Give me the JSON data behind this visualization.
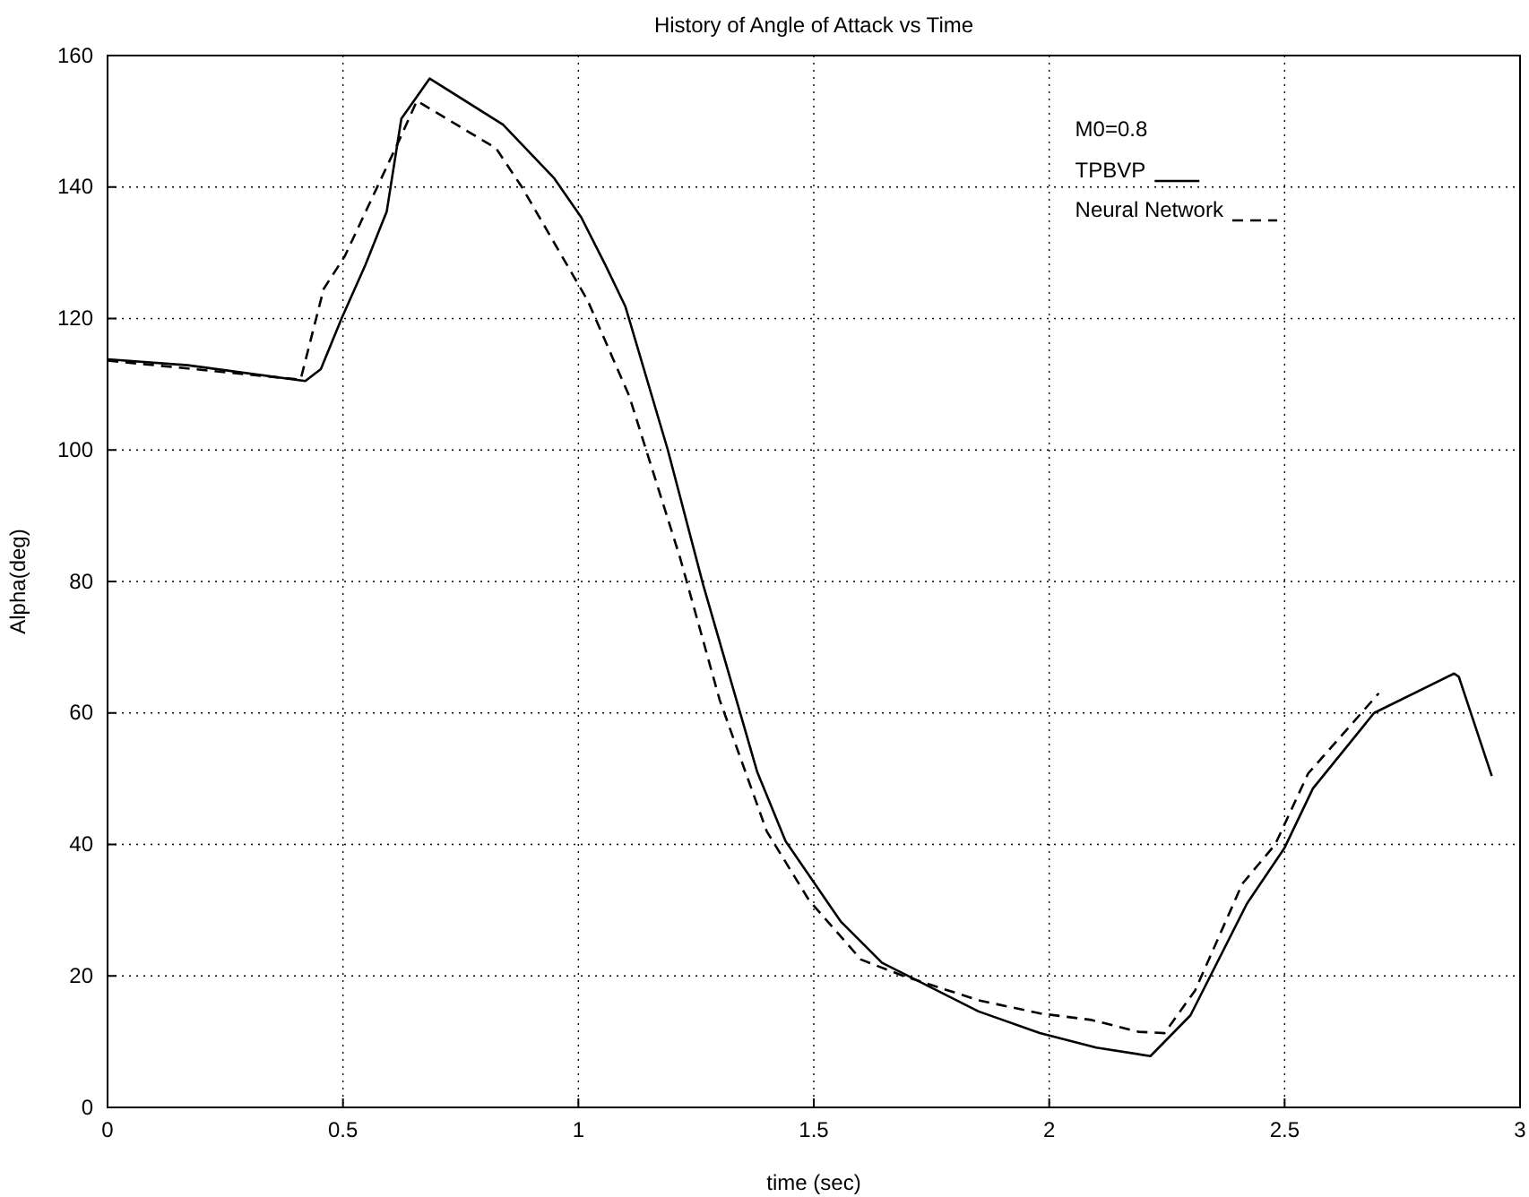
{
  "chart_data": {
    "type": "line",
    "title": "History of Angle of Attack vs Time",
    "xlabel": "time (sec)",
    "ylabel": "Alpha(deg)",
    "legend_title": "M0=0.8",
    "xlim": [
      0,
      3
    ],
    "ylim": [
      0,
      160
    ],
    "xticks": [
      0,
      0.5,
      1,
      1.5,
      2,
      2.5,
      3
    ],
    "yticks": [
      0,
      20,
      40,
      60,
      80,
      100,
      120,
      140,
      160
    ],
    "grid": true,
    "legend": "top right",
    "series": [
      {
        "name": "TPBVP",
        "color": "#000000",
        "line_style": "solid",
        "x": [
          0,
          0.17,
          0.42,
          0.453,
          0.497,
          0.548,
          0.593,
          0.624,
          0.684,
          0.84,
          0.949,
          1.006,
          1.057,
          1.1,
          1.19,
          1.265,
          1.38,
          1.44,
          1.557,
          1.645,
          1.85,
          1.98,
          2.1,
          2.215,
          2.3,
          2.42,
          2.5,
          2.56,
          2.69,
          2.86,
          2.87,
          2.94
        ],
        "values": [
          113.8,
          112.9,
          110.5,
          112.3,
          120,
          128.2,
          136.3,
          150.4,
          156.5,
          149.5,
          141.3,
          135.4,
          128.2,
          121.8,
          100,
          79.5,
          51,
          40.5,
          28.3,
          22,
          14.6,
          11.3,
          9.1,
          7.8,
          14,
          31,
          39.5,
          48.5,
          60,
          66,
          65.5,
          50.4
        ]
      },
      {
        "name": "Neural Network",
        "color": "#000000",
        "line_style": "dashed",
        "x": [
          0,
          0.41,
          0.459,
          0.504,
          0.62,
          0.657,
          0.825,
          0.88,
          1.02,
          1.108,
          1.216,
          1.3,
          1.4,
          1.49,
          1.6,
          1.69,
          1.85,
          1.98,
          2.09,
          2.19,
          2.245,
          2.31,
          2.41,
          2.48,
          2.55,
          2.7
        ],
        "values": [
          113.6,
          110.7,
          124.5,
          129.5,
          147.2,
          153.1,
          145.9,
          140,
          122.7,
          108.2,
          83.6,
          62,
          42,
          31.5,
          22.5,
          20,
          16.3,
          14.3,
          13.3,
          11.5,
          11.3,
          17.8,
          34,
          40,
          50.8,
          63
        ]
      }
    ]
  }
}
